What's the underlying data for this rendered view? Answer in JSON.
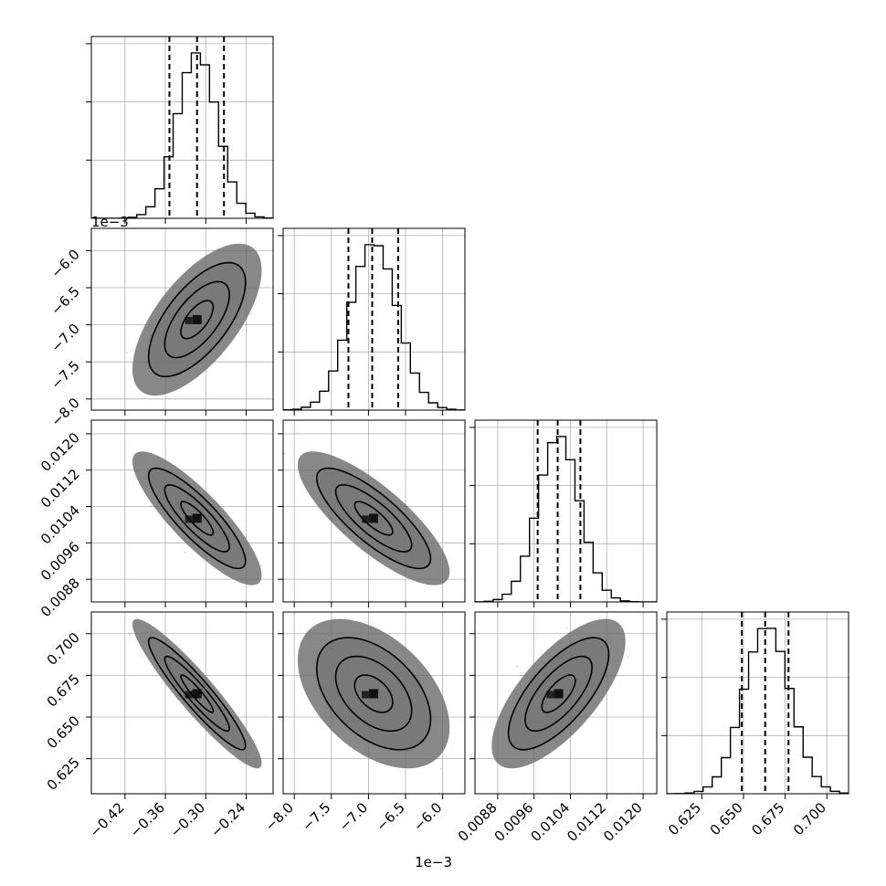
{
  "chart_data": {
    "type": "corner",
    "parameters": [
      {
        "range": [
          -0.47,
          -0.2
        ],
        "ticks": [
          -0.42,
          -0.36,
          -0.3,
          -0.24
        ],
        "tick_labels": [
          "−0.42",
          "−0.36",
          "−0.30",
          "−0.24"
        ],
        "offset_text": "",
        "quantiles": [
          -0.354,
          -0.313,
          -0.273
        ],
        "mean": -0.313,
        "sd": 0.03
      },
      {
        "range": [
          -8.15,
          -5.7
        ],
        "ticks": [
          -8.0,
          -7.5,
          -7.0,
          -6.5,
          -6.0
        ],
        "tick_labels": [
          "−8.0",
          "−7.5",
          "−7.0",
          "−6.5",
          "−6.0"
        ],
        "offset_text": "1e−3",
        "quantiles": [
          -7.27,
          -6.95,
          -6.6
        ],
        "mean": -6.93,
        "sd": 0.32
      },
      {
        "range": [
          0.0083,
          0.0123
        ],
        "ticks": [
          0.0088,
          0.0096,
          0.0104,
          0.0112,
          0.012
        ],
        "tick_labels": [
          "0.0088",
          "0.0096",
          "0.0104",
          "0.0112",
          "0.0120"
        ],
        "offset_text": "",
        "quantiles": [
          0.00968,
          0.01012,
          0.01062
        ],
        "mean": 0.01014,
        "sd": 0.00046
      },
      {
        "range": [
          0.604,
          0.713
        ],
        "ticks": [
          0.625,
          0.65,
          0.675,
          0.7
        ],
        "tick_labels": [
          "0.625",
          "0.650",
          "0.675",
          "0.700"
        ],
        "offset_text": "",
        "quantiles": [
          0.649,
          0.663,
          0.677
        ],
        "mean": 0.664,
        "sd": 0.014
      }
    ],
    "correlations": [
      {
        "pair": [
          1,
          0
        ],
        "rho": 0.65
      },
      {
        "pair": [
          2,
          0
        ],
        "rho": -0.85
      },
      {
        "pair": [
          2,
          1
        ],
        "rho": -0.8
      },
      {
        "pair": [
          3,
          0
        ],
        "rho": -0.93
      },
      {
        "pair": [
          3,
          1
        ],
        "rho": -0.45
      },
      {
        "pair": [
          3,
          2
        ],
        "rho": 0.7
      }
    ],
    "histogram": {
      "style": "step",
      "bins": 20
    },
    "contour_levels": [
      0.5,
      1.0,
      1.5,
      2.0
    ],
    "grid": true,
    "colors": {
      "line": "#000000",
      "grid": "#b0b0b0",
      "points": "#888888",
      "fill": "#ffffff"
    }
  }
}
